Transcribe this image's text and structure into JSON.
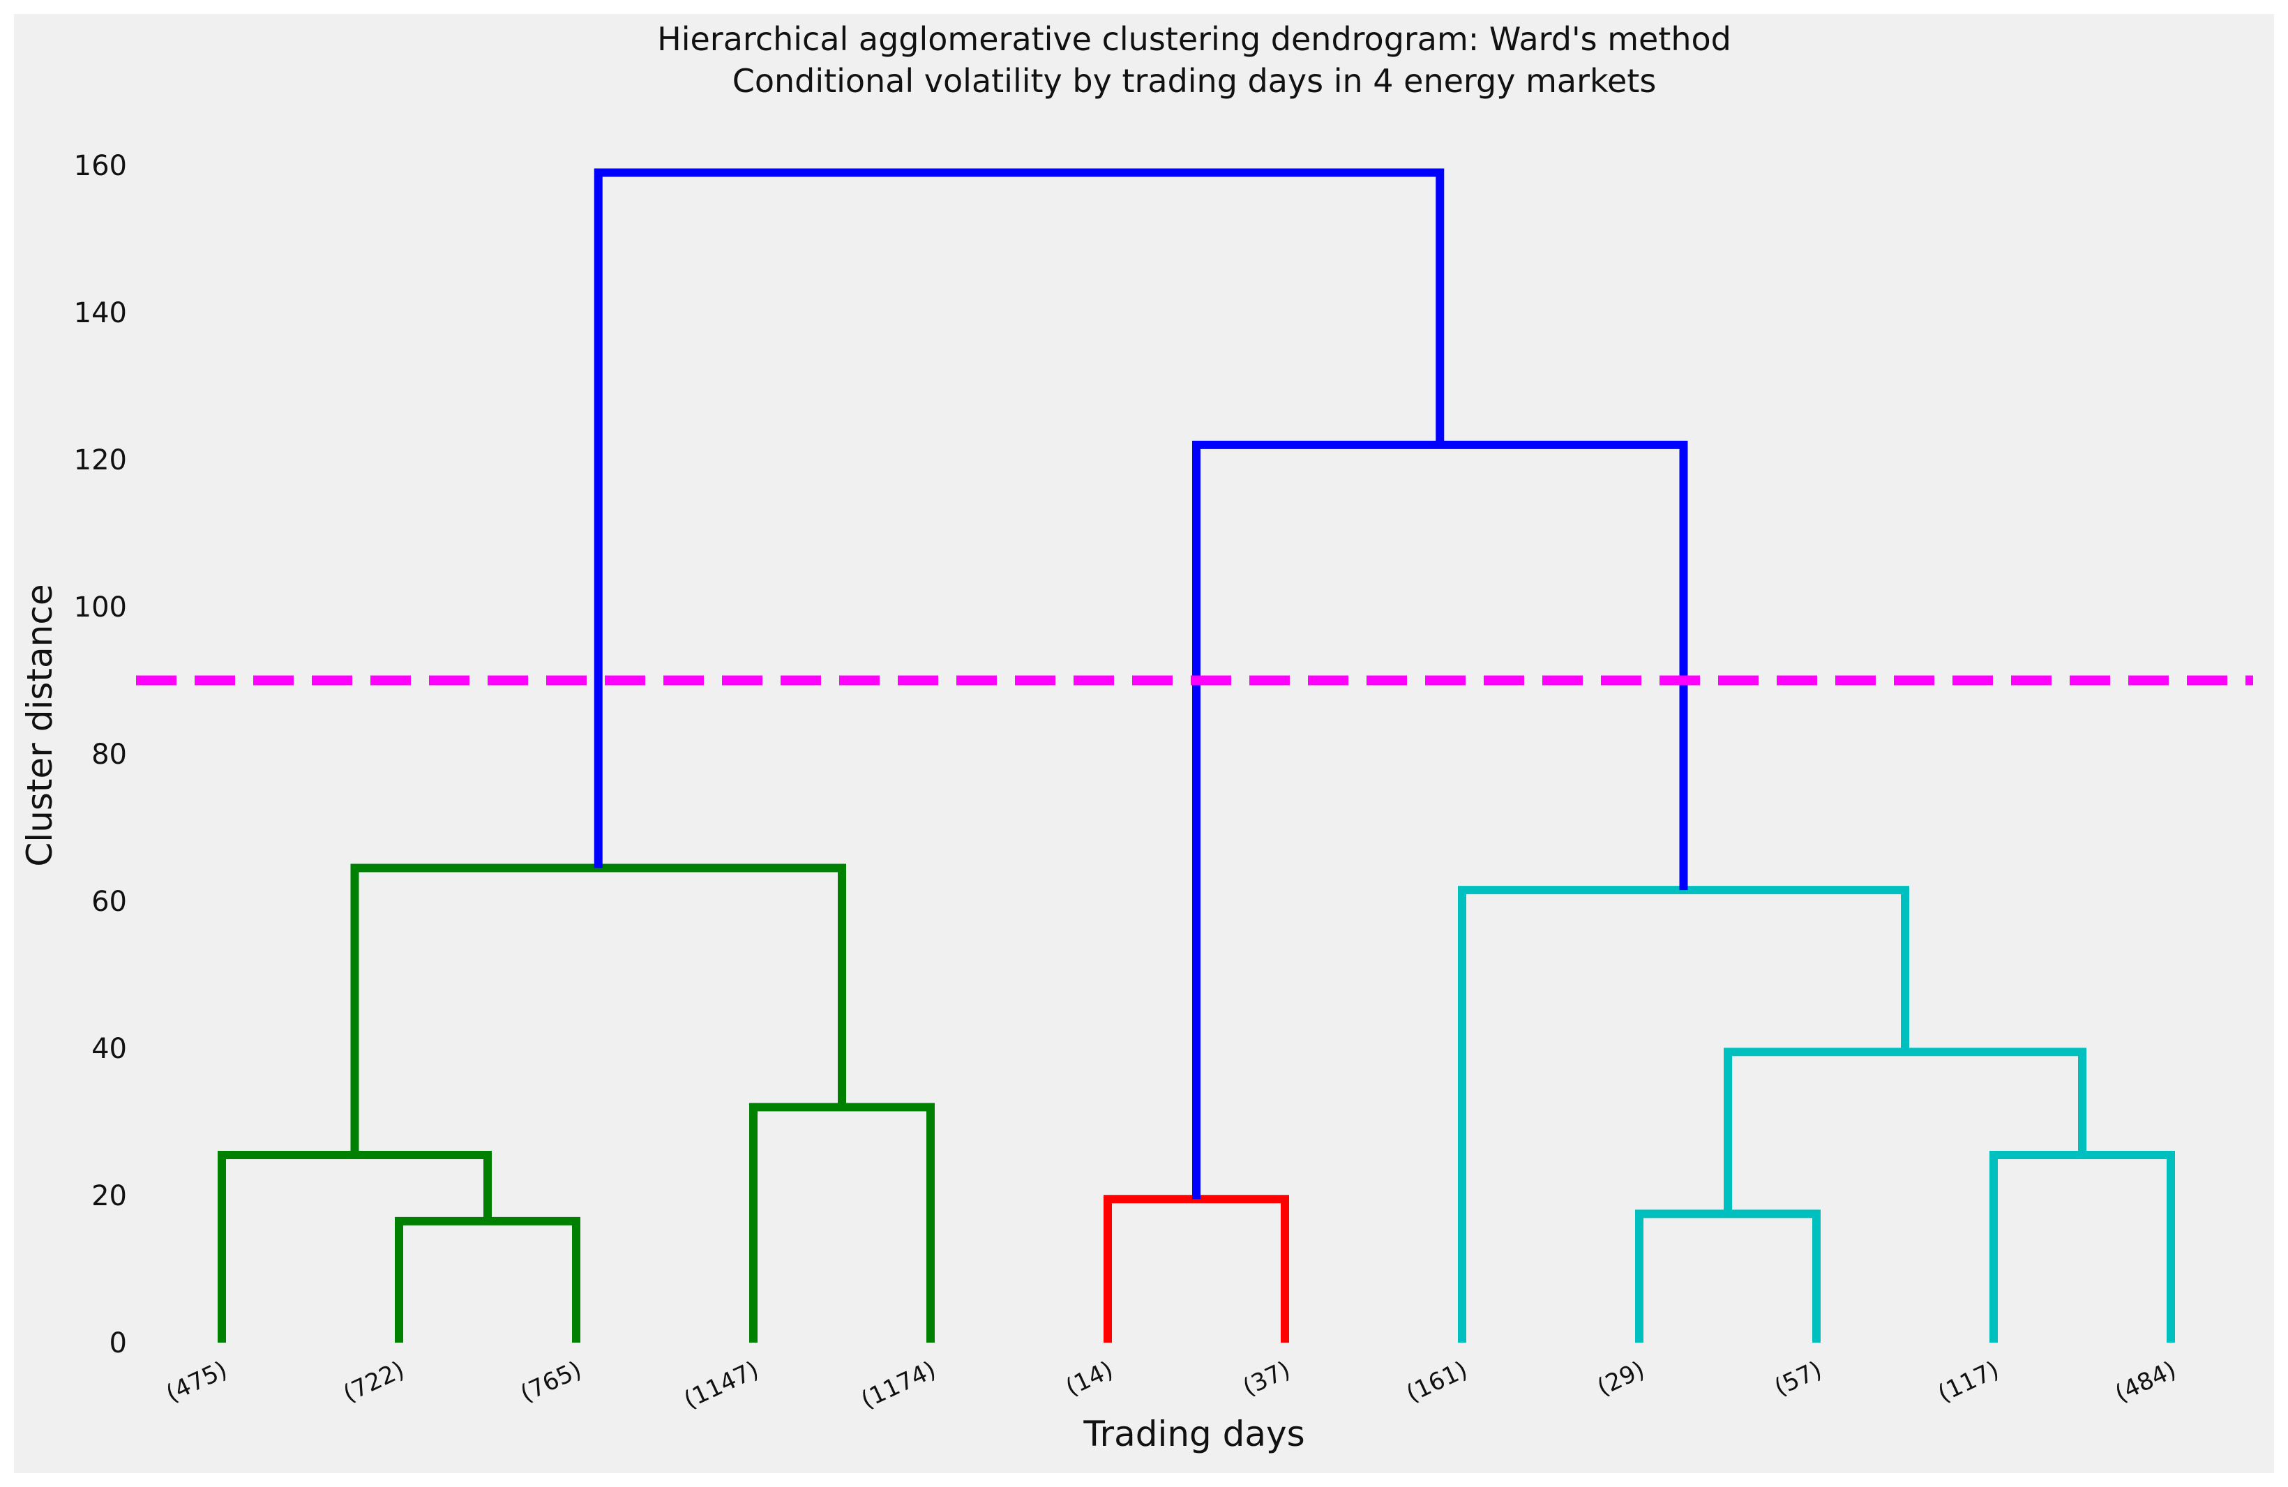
{
  "chart_data": {
    "type": "dendrogram",
    "title_line1": "Hierarchical agglomerative clustering dendrogram: Ward's method",
    "title_line2": "Conditional volatility by trading days in 4 energy markets",
    "xlabel": "Trading days",
    "ylabel": "Cluster distance",
    "ylim": [
      0,
      160
    ],
    "yticks": [
      0,
      20,
      40,
      60,
      80,
      100,
      120,
      140,
      160
    ],
    "grid": false,
    "leaves": [
      "(475)",
      "(722)",
      "(765)",
      "(1147)",
      "(1174)",
      "(14)",
      "(37)",
      "(161)",
      "(29)",
      "(57)",
      "(117)",
      "(484)"
    ],
    "threshold": {
      "value": 90,
      "color": "#ff00ff",
      "style": "dashed"
    },
    "colors": {
      "green": "#008000",
      "red": "#ff0000",
      "cyan": "#00bfbf",
      "blue": "#0000ff"
    },
    "links": [
      {
        "id": "g1",
        "left": "leaf:1",
        "right": "leaf:2",
        "height": 16.5,
        "color": "green"
      },
      {
        "id": "g2",
        "left": "leaf:0",
        "right": "g1",
        "height": 25.5,
        "color": "green"
      },
      {
        "id": "g3",
        "left": "leaf:3",
        "right": "leaf:4",
        "height": 32,
        "color": "green"
      },
      {
        "id": "g4",
        "left": "g2",
        "right": "g3",
        "height": 64.5,
        "color": "green"
      },
      {
        "id": "r1",
        "left": "leaf:5",
        "right": "leaf:6",
        "height": 19.5,
        "color": "red"
      },
      {
        "id": "c1",
        "left": "leaf:8",
        "right": "leaf:9",
        "height": 17.5,
        "color": "cyan"
      },
      {
        "id": "c2",
        "left": "leaf:10",
        "right": "leaf:11",
        "height": 25.5,
        "color": "cyan"
      },
      {
        "id": "c3",
        "left": "c1",
        "right": "c2",
        "height": 39.5,
        "color": "cyan"
      },
      {
        "id": "c4",
        "left": "leaf:7",
        "right": "c3",
        "height": 61.5,
        "color": "cyan"
      },
      {
        "id": "b1",
        "left": "r1",
        "right": "c4",
        "height": 122,
        "color": "blue"
      },
      {
        "id": "b2",
        "left": "g4",
        "right": "b1",
        "height": 159,
        "color": "blue"
      }
    ]
  }
}
